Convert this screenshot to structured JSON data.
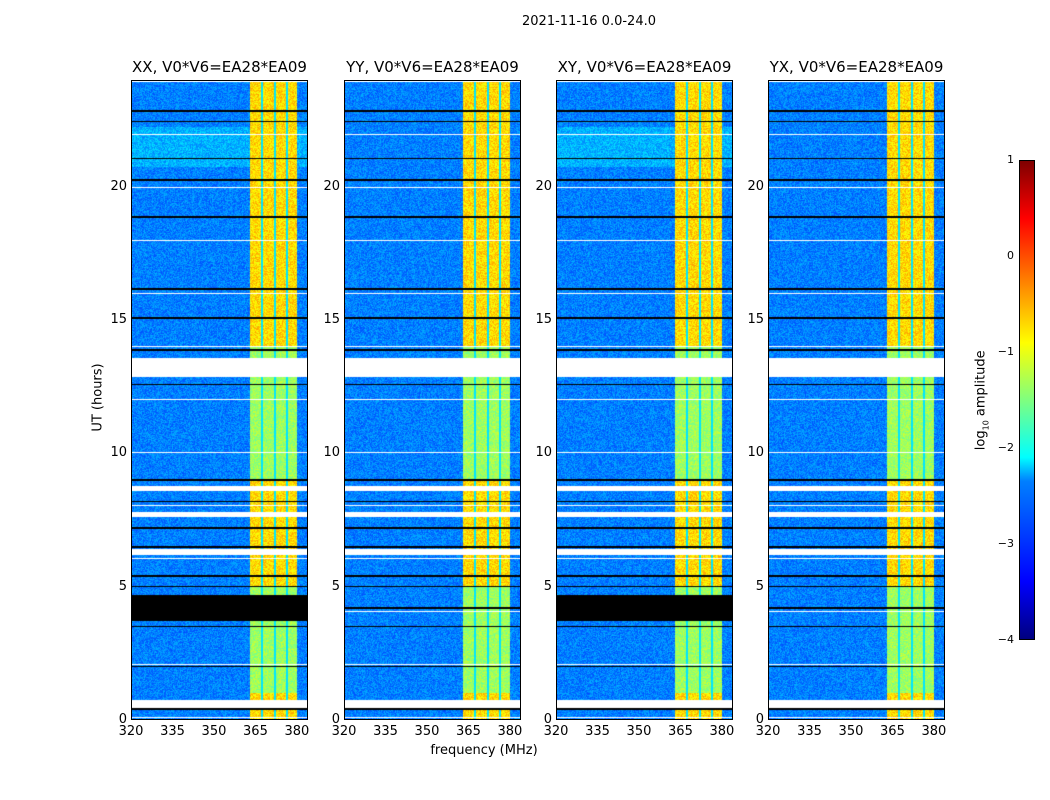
{
  "chart_data": {
    "type": "heatmap",
    "title": "2021-11-16 0.0-24.0",
    "xlabel": "frequency (MHz)",
    "ylabel": "UT (hours)",
    "xlim": [
      320,
      384
    ],
    "ylim": [
      0,
      24
    ],
    "xticks": [
      "320",
      "335",
      "350",
      "365",
      "380"
    ],
    "yticks": [
      "0",
      "5",
      "10",
      "15",
      "20"
    ],
    "ytick_values": [
      0,
      5,
      10,
      15,
      20
    ],
    "xtick_values": [
      320,
      335,
      350,
      365,
      380
    ],
    "panels": [
      {
        "title": "XX, V0*V6=EA28*EA09",
        "flagged_block_hours": [
          3.7,
          4.7
        ]
      },
      {
        "title": "YY, V0*V6=EA28*EA09",
        "flagged_block_hours": null
      },
      {
        "title": "XY, V0*V6=EA28*EA09",
        "flagged_block_hours": [
          3.7,
          4.7
        ]
      },
      {
        "title": "YX, V0*V6=EA28*EA09",
        "flagged_block_hours": null
      }
    ],
    "bright_band_mhz": [
      361,
      380
    ],
    "white_gaps_hours": [
      [
        0.45,
        0.75
      ],
      [
        6.2,
        6.4
      ],
      [
        7.6,
        7.8
      ],
      [
        8.6,
        8.8
      ],
      [
        12.9,
        13.6
      ]
    ],
    "black_lines_hours": [
      0.4,
      2.0,
      3.5,
      4.2,
      5.0,
      5.4,
      6.5,
      7.2,
      8.2,
      9.0,
      12.6,
      13.9,
      15.1,
      16.2,
      18.9,
      20.3,
      21.1,
      22.5,
      22.9
    ],
    "colorbar": {
      "label": "log10 amplitude",
      "range": [
        -4,
        1
      ],
      "ticks": [
        "1",
        "0",
        "−1",
        "−2",
        "−3",
        "−4"
      ],
      "colormap": "jet"
    }
  }
}
